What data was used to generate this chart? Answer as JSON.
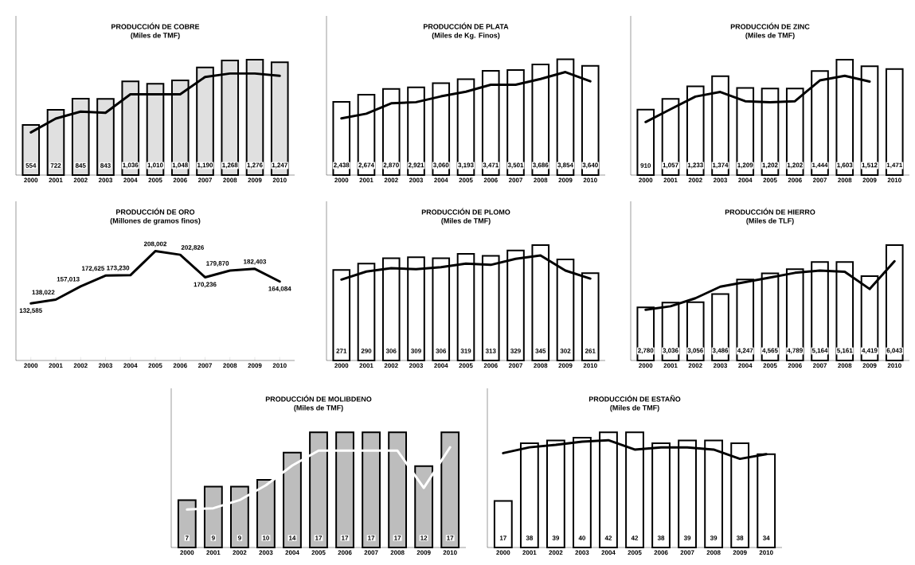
{
  "chart_data": [
    {
      "type": "bar",
      "title": "PRODUCCIÓN DE COBRE",
      "subtitle": "(Miles de TMF)",
      "ylim": [
        0,
        1760
      ],
      "categories": [
        "2000",
        "2001",
        "2002",
        "2003",
        "2004",
        "2005",
        "2006",
        "2007",
        "2008",
        "2009",
        "2010"
      ],
      "series": [
        {
          "color": "#e0e0e0",
          "values": [
            554,
            722,
            845,
            843,
            1036,
            1010,
            1048,
            1190,
            1268,
            1276,
            1247
          ],
          "value_labels": [
            "554",
            "722",
            "845",
            "843",
            "1,036",
            "1,010",
            "1,048",
            "1,190",
            "1,268",
            "1,276",
            "1,247"
          ]
        },
        {
          "type": "line",
          "color": "#000000",
          "values": [
            472,
            625,
            702,
            689,
            893,
            893,
            893,
            1085,
            1123,
            1123,
            1097
          ]
        }
      ]
    },
    {
      "type": "bar",
      "title": "PRODUCCIÓN DE PLATA",
      "subtitle": "(Miles de Kg. Finos)",
      "ylim": [
        0,
        5300
      ],
      "categories": [
        "2000",
        "2001",
        "2002",
        "2003",
        "2004",
        "2005",
        "2006",
        "2007",
        "2008",
        "2009",
        "2010"
      ],
      "series": [
        {
          "color": "#ffffff",
          "values": [
            2438,
            2674,
            2870,
            2921,
            3060,
            3193,
            3471,
            3501,
            3686,
            3854,
            3640
          ],
          "value_labels": [
            "2,438",
            "2,674",
            "2,870",
            "2,921",
            "3,060",
            "3,193",
            "3,471",
            "3,501",
            "3,686",
            "3,854",
            "3,640"
          ]
        },
        {
          "type": "line",
          "color": "#000000",
          "values": [
            1888,
            2043,
            2389,
            2428,
            2621,
            2775,
            3006,
            3006,
            3199,
            3430,
            3122
          ]
        }
      ]
    },
    {
      "type": "bar",
      "title": "PRODUCCIÓN DE ZINC",
      "subtitle": "(Miles de TMF)",
      "ylim": [
        0,
        2210
      ],
      "categories": [
        "2000",
        "2001",
        "2002",
        "2003",
        "2004",
        "2005",
        "2006",
        "2007",
        "2008",
        "2009",
        "2010"
      ],
      "series": [
        {
          "color": "#ffffff",
          "values": [
            910,
            1057,
            1233,
            1374,
            1209,
            1202,
            1202,
            1444,
            1603,
            1512,
            1471
          ],
          "value_labels": [
            "910",
            "1,057",
            "1,233",
            "1,374",
            "1,209",
            "1,202",
            "1,202",
            "1,444",
            "1,603",
            "1,512",
            "1,471"
          ]
        },
        {
          "type": "line",
          "color": "#000000",
          "values": [
            737,
            914,
            1090,
            1154,
            1026,
            1010,
            1026,
            1314,
            1379,
            1298,
            null
          ]
        }
      ]
    },
    {
      "type": "line",
      "title": "PRODUCCIÓN DE ORO",
      "subtitle": "(Millones de gramos finos)",
      "ylim": [
        50000,
        280000
      ],
      "categories": [
        "2000",
        "2001",
        "2002",
        "2003",
        "2004",
        "2005",
        "2006",
        "2007",
        "2008",
        "2009",
        "2010"
      ],
      "series": [
        {
          "color": "#000000",
          "values": [
            132585,
            138022,
            157013,
            172625,
            173230,
            208002,
            202826,
            170236,
            179870,
            182403,
            164084
          ],
          "value_labels": [
            "132,585",
            "138,022",
            "157,013",
            "172,625",
            "173,230",
            "208,002",
            "202,826",
            "170,236",
            "179,870",
            "182,403",
            "164,084"
          ]
        }
      ]
    },
    {
      "type": "bar",
      "title": "PRODUCCIÓN DE PLOMO",
      "subtitle": "(Miles de TMF)",
      "ylim": [
        0,
        476
      ],
      "categories": [
        "2000",
        "2001",
        "2002",
        "2003",
        "2004",
        "2005",
        "2006",
        "2007",
        "2008",
        "2009",
        "2010"
      ],
      "series": [
        {
          "color": "#ffffff",
          "values": [
            271,
            290,
            306,
            309,
            306,
            319,
            313,
            329,
            345,
            302,
            261
          ],
          "value_labels": [
            "271",
            "290",
            "306",
            "309",
            "306",
            "319",
            "313",
            "329",
            "345",
            "302",
            "261"
          ]
        },
        {
          "type": "line",
          "color": "#000000",
          "values": [
            242,
            266,
            276,
            273,
            279,
            290,
            286,
            304,
            314,
            269,
            245
          ]
        }
      ]
    },
    {
      "type": "bar",
      "title": "PRODUCCIÓN DE HIERRO",
      "subtitle": "(Miles de TLF)",
      "ylim": [
        0,
        8340
      ],
      "categories": [
        "2000",
        "2001",
        "2002",
        "2003",
        "2004",
        "2005",
        "2006",
        "2007",
        "2008",
        "2009",
        "2010"
      ],
      "series": [
        {
          "color": "#ffffff",
          "values": [
            2780,
            3036,
            3056,
            3486,
            4247,
            4565,
            4789,
            5164,
            5161,
            4419,
            6043
          ],
          "value_labels": [
            "2,780",
            "3,036",
            "3,056",
            "3,486",
            "4,247",
            "4,565",
            "4,789",
            "5,164",
            "5,161",
            "4,419",
            "6,043"
          ]
        },
        {
          "type": "line",
          "color": "#000000",
          "values": [
            2659,
            2840,
            3263,
            3868,
            4109,
            4351,
            4593,
            4714,
            4653,
            3747,
            5197
          ]
        }
      ]
    },
    {
      "type": "bar",
      "title": "PRODUCCIÓN DE MOLIBDENO",
      "subtitle": "(Miles de TMF)",
      "ylim": [
        0,
        23.5
      ],
      "categories": [
        "2000",
        "2001",
        "2002",
        "2003",
        "2004",
        "2005",
        "2006",
        "2007",
        "2008",
        "2009",
        "2010"
      ],
      "series": [
        {
          "color": "#bdbdbd",
          "values": [
            7,
            9,
            9,
            10,
            14,
            17,
            17,
            17,
            17,
            12,
            17
          ],
          "value_labels": [
            "7",
            "9",
            "9",
            "10",
            "14",
            "17",
            "17",
            "17",
            "17",
            "12",
            "17"
          ]
        },
        {
          "type": "line",
          "color": "#ffffff",
          "values": [
            5.6,
            5.8,
            7.0,
            9.2,
            12.1,
            14.3,
            14.3,
            14.3,
            14.3,
            8.8,
            14.8
          ]
        }
      ]
    },
    {
      "type": "bar",
      "title": "PRODUCCIÓN DE ESTAÑO",
      "subtitle": "(Miles de TMF)",
      "ylim": [
        0,
        58
      ],
      "categories": [
        "2000",
        "2001",
        "2002",
        "2003",
        "2004",
        "2005",
        "2006",
        "2007",
        "2008",
        "2009",
        "2010"
      ],
      "series": [
        {
          "color": "#ffffff",
          "values": [
            17,
            38,
            39,
            40,
            42,
            42,
            38,
            39,
            39,
            38,
            34
          ],
          "value_labels": [
            "17",
            "38",
            "39",
            "40",
            "42",
            "42",
            "38",
            "39",
            "39",
            "38",
            "34"
          ]
        },
        {
          "type": "line",
          "color": "#000000",
          "values": [
            34.4,
            36.5,
            37.4,
            38.6,
            39.1,
            35.7,
            36.5,
            36.5,
            35.7,
            32.3,
            34.0
          ]
        }
      ]
    }
  ]
}
